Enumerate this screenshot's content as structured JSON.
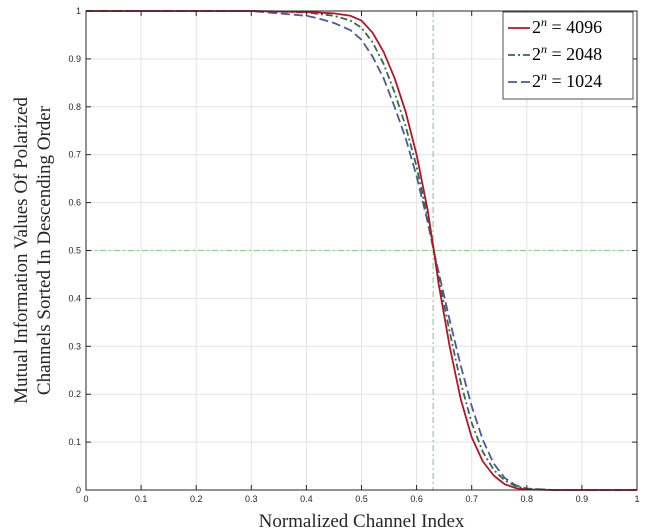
{
  "chart_data": {
    "type": "line",
    "title": "",
    "xlabel": "Normalized Channel Index",
    "ylabel_lines": [
      "Mutual Information Values Of Polarized",
      "Channels Sorted In Descending Order"
    ],
    "xlim": [
      0,
      1
    ],
    "ylim": [
      0,
      1
    ],
    "xticks": [
      "0",
      "0.1",
      "0.2",
      "0.3",
      "0.4",
      "0.5",
      "0.6",
      "0.7",
      "0.8",
      "0.9",
      "1"
    ],
    "yticks": [
      "0",
      "0.1",
      "0.2",
      "0.3",
      "0.4",
      "0.5",
      "0.6",
      "0.7",
      "0.8",
      "0.9",
      "1"
    ],
    "grid": true,
    "legend_position": "top-right",
    "reference_lines": {
      "vertical_x": 0.63,
      "horizontal_y": 0.5,
      "color": "#8fd18f"
    },
    "series": [
      {
        "name": "2^n = 4096",
        "legend_base": "2",
        "legend_sup": "n",
        "legend_rest": " = 4096",
        "color": "#b5152b",
        "dash": "none",
        "x": [
          0,
          0.1,
          0.2,
          0.3,
          0.4,
          0.45,
          0.48,
          0.5,
          0.52,
          0.54,
          0.56,
          0.58,
          0.6,
          0.62,
          0.63,
          0.64,
          0.66,
          0.68,
          0.7,
          0.72,
          0.74,
          0.76,
          0.78,
          0.8,
          0.85,
          0.9,
          1
        ],
        "y": [
          1,
          1,
          1,
          1,
          0.998,
          0.995,
          0.99,
          0.98,
          0.955,
          0.915,
          0.86,
          0.79,
          0.7,
          0.585,
          0.51,
          0.43,
          0.3,
          0.19,
          0.11,
          0.06,
          0.03,
          0.012,
          0.004,
          0.001,
          0,
          0,
          0
        ]
      },
      {
        "name": "2^n = 2048",
        "legend_base": "2",
        "legend_sup": "n",
        "legend_rest": " = 2048",
        "color": "#2e6f40",
        "dash": "7 3 2 3",
        "x": [
          0,
          0.1,
          0.2,
          0.3,
          0.4,
          0.45,
          0.48,
          0.5,
          0.52,
          0.54,
          0.56,
          0.58,
          0.6,
          0.62,
          0.63,
          0.64,
          0.66,
          0.68,
          0.7,
          0.72,
          0.74,
          0.76,
          0.78,
          0.8,
          0.85,
          0.9,
          1
        ],
        "y": [
          1,
          1,
          1,
          1,
          0.997,
          0.99,
          0.98,
          0.965,
          0.935,
          0.89,
          0.83,
          0.76,
          0.675,
          0.57,
          0.51,
          0.445,
          0.33,
          0.225,
          0.14,
          0.08,
          0.042,
          0.02,
          0.008,
          0.002,
          0,
          0,
          0
        ]
      },
      {
        "name": "2^n = 1024",
        "legend_base": "2",
        "legend_sup": "n",
        "legend_rest": " = 1024",
        "color": "#4a5a9a",
        "dash": "9 4",
        "x": [
          0,
          0.1,
          0.2,
          0.3,
          0.4,
          0.42,
          0.45,
          0.48,
          0.5,
          0.52,
          0.54,
          0.56,
          0.58,
          0.6,
          0.62,
          0.63,
          0.64,
          0.66,
          0.68,
          0.7,
          0.72,
          0.74,
          0.76,
          0.78,
          0.8,
          0.85,
          1
        ],
        "y": [
          1,
          1,
          1,
          1,
          0.99,
          0.985,
          0.975,
          0.96,
          0.94,
          0.905,
          0.86,
          0.8,
          0.735,
          0.655,
          0.56,
          0.505,
          0.455,
          0.355,
          0.26,
          0.175,
          0.105,
          0.055,
          0.025,
          0.01,
          0.003,
          0,
          0
        ]
      }
    ]
  }
}
